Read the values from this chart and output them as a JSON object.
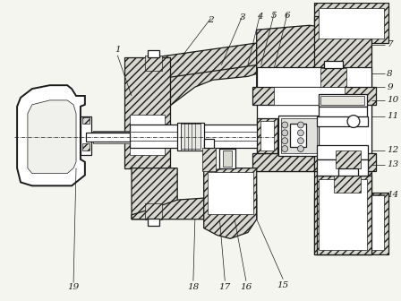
{
  "bg": "#f5f5f0",
  "lc": "#1a1a1a",
  "hc": "#c8c8c8",
  "lw_thick": 1.4,
  "lw_med": 0.9,
  "lw_thin": 0.5,
  "label_fs": 7.5
}
